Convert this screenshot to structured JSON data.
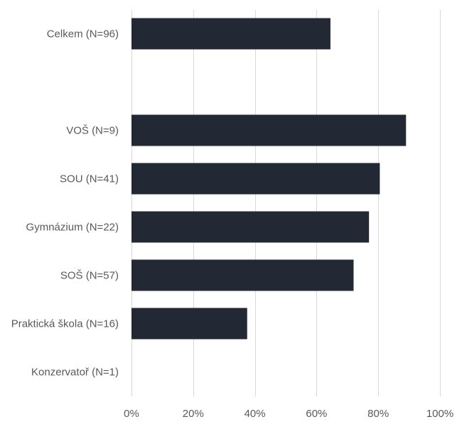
{
  "chart_data": {
    "type": "bar",
    "orientation": "horizontal",
    "categories": [
      "Celkem (N=96)",
      "",
      "VOŠ (N=9)",
      "SOU (N=41)",
      "Gymnázium (N=22)",
      "SOŠ (N=57)",
      "Praktická škola (N=16)",
      "Konzervatoř (N=1)"
    ],
    "values": [
      64.5,
      null,
      89,
      80.5,
      77,
      72,
      37.5,
      0
    ],
    "x_ticks": [
      "0%",
      "20%",
      "40%",
      "60%",
      "80%",
      "100%"
    ],
    "xlim": [
      0,
      100
    ],
    "grid": "vertical",
    "legend": "none",
    "bar_color": "#222834",
    "title": "",
    "xlabel": "",
    "ylabel": ""
  }
}
